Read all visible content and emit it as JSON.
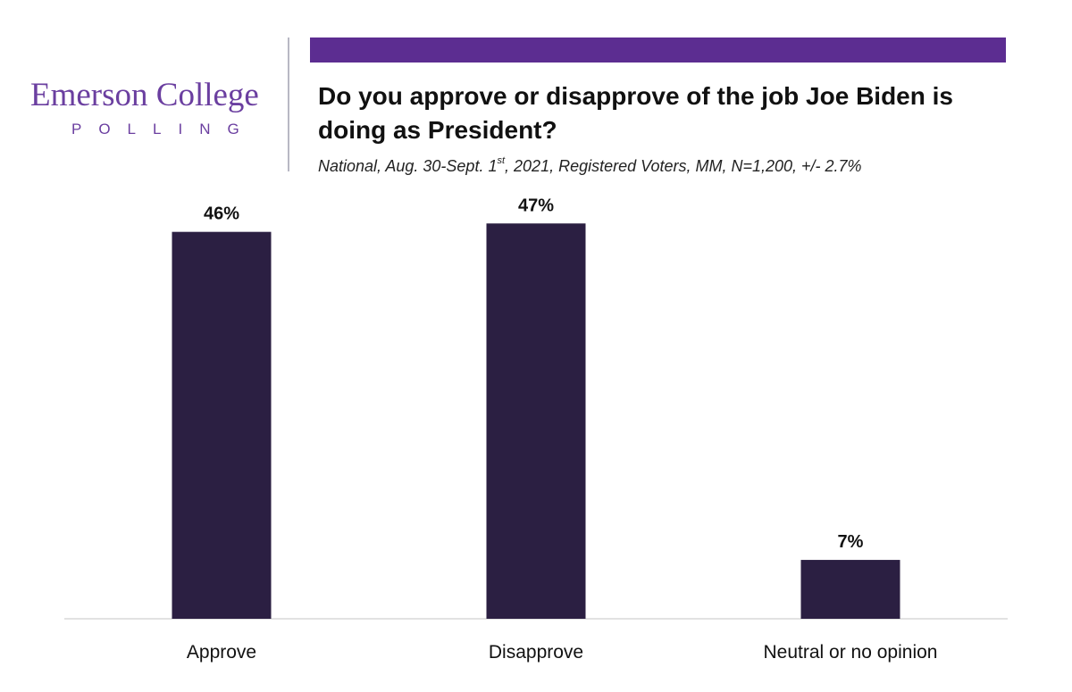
{
  "logo": {
    "name": "Emerson College",
    "sub": "POLLING"
  },
  "colors": {
    "bar": "#2b1f42",
    "band": "#5c2d91",
    "logo": "#6b3fa0",
    "axis": "#d9d9d9"
  },
  "chart_data": {
    "type": "bar",
    "title": "Do you approve or disapprove of the job Joe Biden is doing as President?",
    "subtitle_parts": {
      "before": "National, Aug. 30-Sept. 1",
      "sup": "st",
      "after": ", 2021, Registered Voters, MM, N=1,200, +/- 2.7%"
    },
    "categories": [
      "Approve",
      "Disapprove",
      "Neutral or no opinion"
    ],
    "values": [
      46,
      47,
      7
    ],
    "value_labels": [
      "46%",
      "47%",
      "7%"
    ],
    "xlabel": "",
    "ylabel": "",
    "ylim": [
      0,
      50
    ],
    "grid": false,
    "legend": "none"
  }
}
